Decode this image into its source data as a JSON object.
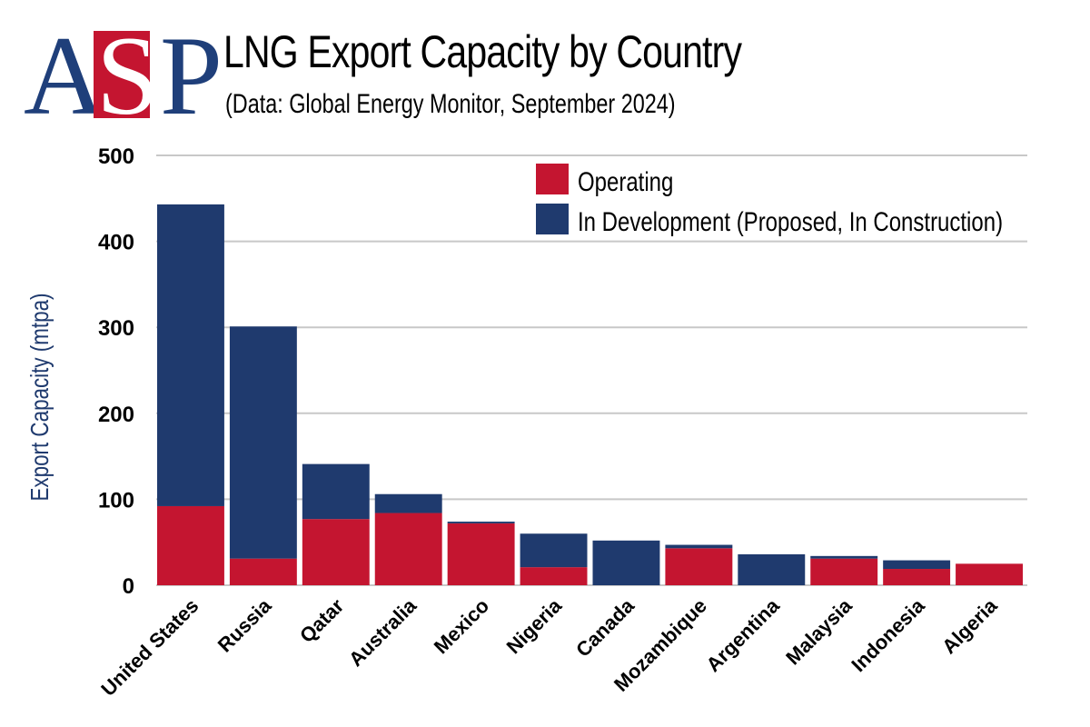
{
  "logo": {
    "letters": [
      "A",
      "S",
      "P"
    ]
  },
  "header": {
    "title": "LNG Export Capacity by Country",
    "subtitle": "(Data: Global Energy Monitor, September 2024)"
  },
  "colors": {
    "operating": "#c41530",
    "development": "#1f3a6e",
    "grid": "#c8c8c8"
  },
  "chart_data": {
    "type": "bar",
    "stacked": true,
    "title": "LNG Export Capacity by Country",
    "subtitle": "(Data: Global Energy Monitor, September 2024)",
    "xlabel": "",
    "ylabel": "Export Capacity (mtpa)",
    "ylim": [
      0,
      500
    ],
    "yticks": [
      0,
      100,
      200,
      300,
      400,
      500
    ],
    "grid": true,
    "legend_position": "top-right",
    "categories": [
      "United States",
      "Russia",
      "Qatar",
      "Australia",
      "Mexico",
      "Nigeria",
      "Canada",
      "Mozambique",
      "Argentina",
      "Malaysia",
      "Indonesia",
      "Algeria"
    ],
    "series": [
      {
        "name": "Operating",
        "color": "#c41530",
        "values": [
          92,
          31,
          77,
          84,
          72,
          21,
          0,
          43,
          0,
          31,
          19,
          25
        ]
      },
      {
        "name": "In Development (Proposed, In Construction)",
        "color": "#1f3a6e",
        "values": [
          351,
          270,
          64,
          22,
          2,
          39,
          52,
          4,
          36,
          3,
          10,
          0
        ]
      }
    ]
  }
}
